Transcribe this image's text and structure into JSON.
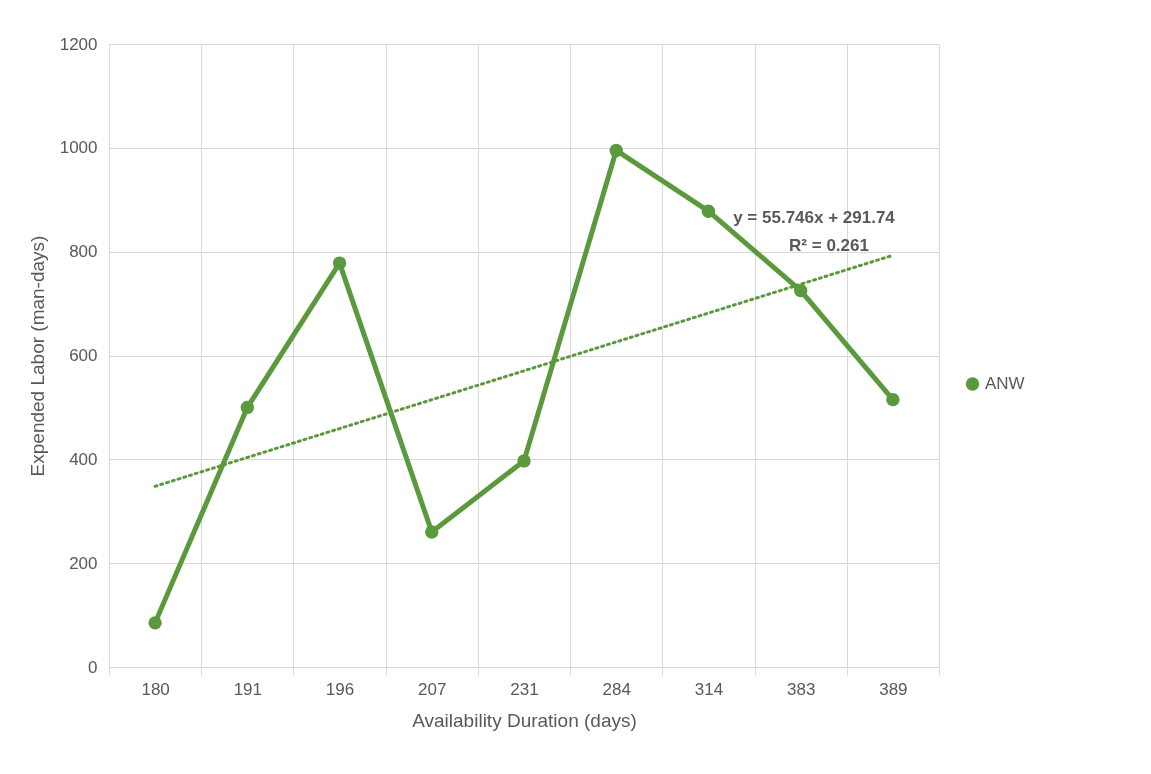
{
  "chart_data": {
    "type": "line",
    "xlabel": "Availability Duration (days)",
    "ylabel": "Expended Labor (man-days)",
    "categories": [
      "180",
      "191",
      "196",
      "207",
      "231",
      "284",
      "314",
      "383",
      "389"
    ],
    "series": [
      {
        "name": "ANW",
        "color": "#5b9a3c",
        "values": [
          85,
          500,
          778,
          260,
          397,
          995,
          878,
          725,
          515
        ],
        "marker": "circle",
        "line_style": "solid"
      },
      {
        "type": "line",
        "color": "#5b9a3c",
        "x": [
          "180",
          "389"
        ],
        "values": [
          348,
          793
        ],
        "marker": "none",
        "line_style": "dotted"
      }
    ],
    "annotations": [
      "y = 55.746x + 291.74",
      "R² = 0.261"
    ],
    "ylim": [
      0,
      1200
    ],
    "yticks": [
      0,
      200,
      400,
      600,
      800,
      1000,
      1200
    ],
    "grid": true,
    "legend": "right"
  }
}
